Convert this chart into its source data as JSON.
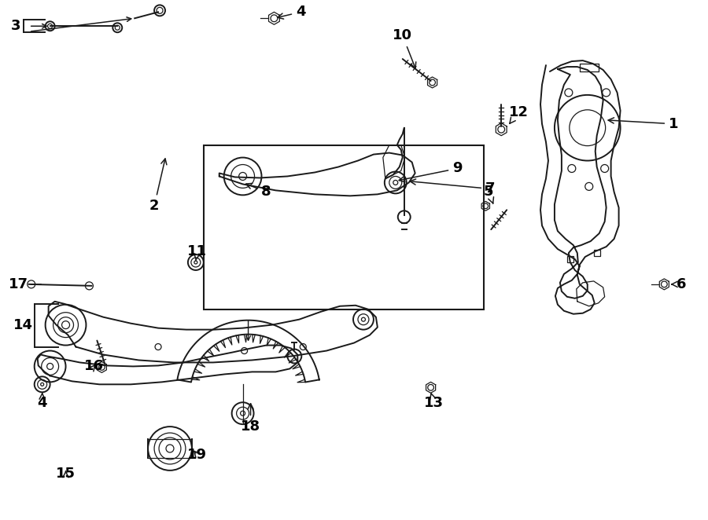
{
  "bg_color": "#ffffff",
  "line_color": "#1a1a1a",
  "text_color": "#000000",
  "lw": 1.4,
  "lw_thin": 0.9,
  "fs": 13
}
